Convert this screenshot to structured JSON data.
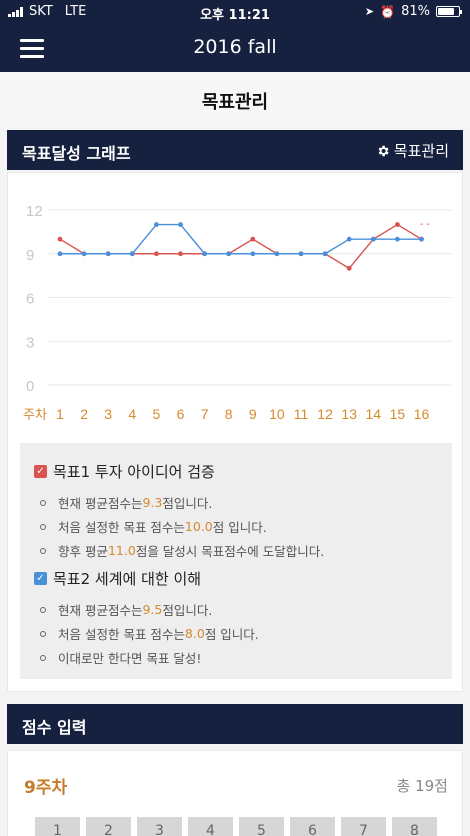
{
  "status": {
    "carrier": "SKT",
    "network": "LTE",
    "time": "오후 11:21",
    "battery": "81%",
    "battery_level": 0.81
  },
  "header": {
    "title": "2016 fall",
    "menu_icon": "hamburger-menu-icon"
  },
  "page": {
    "title": "목표관리"
  },
  "graph_section": {
    "title": "목표달성 그래프",
    "manage_label": "목표관리",
    "manage_icon": "gear-icon"
  },
  "chart_data": {
    "type": "line",
    "x_label": "주차",
    "categories": [
      "1",
      "2",
      "3",
      "4",
      "5",
      "6",
      "7",
      "8",
      "9",
      "10",
      "11",
      "12",
      "13",
      "14",
      "15",
      "16"
    ],
    "yticks": [
      "12",
      "9",
      "6",
      "3",
      "0"
    ],
    "ylim": [
      0,
      12
    ],
    "grid": true,
    "legend_text": "- -",
    "legend_placement": "top-right",
    "series": [
      {
        "values": [
          10,
          9,
          9,
          9,
          9,
          9,
          9,
          9,
          10,
          9,
          9,
          9,
          8,
          10,
          11,
          10
        ],
        "color": "#d9534f"
      },
      {
        "values": [
          9,
          9,
          9,
          9,
          11,
          11,
          9,
          9,
          9,
          9,
          9,
          9,
          10,
          10,
          10,
          10
        ],
        "color": "#4a90d9"
      }
    ]
  },
  "goals": [
    {
      "label": "목표1  투자 아이디어 검증",
      "checkbox_color": "#d9534f",
      "lines": [
        {
          "pre": "현재 평균점수는 ",
          "hl": "9.3",
          "post": "점입니다."
        },
        {
          "pre": "처음 설정한 목표 점수는 ",
          "hl": "10.0",
          "post": "점 입니다."
        },
        {
          "pre": "향후 평균 ",
          "hl": "11.0",
          "post": "점을 달성시 목표점수에 도달합니다."
        }
      ]
    },
    {
      "label": "목표2  세계에 대한 이해",
      "checkbox_color": "#4a90d9",
      "lines": [
        {
          "pre": "현재 평균점수는 ",
          "hl": "9.5",
          "post": "점입니다."
        },
        {
          "pre": "처음 설정한 목표 점수는 ",
          "hl": "8.0",
          "post": "점 입니다."
        },
        {
          "pre": "이대로만 한다면 목표 달성!",
          "hl": "",
          "post": ""
        }
      ]
    }
  ],
  "score_section": {
    "title": "점수 입력",
    "week_label": "9주차",
    "total": "총 19점",
    "boxes": [
      "1",
      "2",
      "3",
      "4",
      "5",
      "6",
      "7",
      "8"
    ]
  }
}
